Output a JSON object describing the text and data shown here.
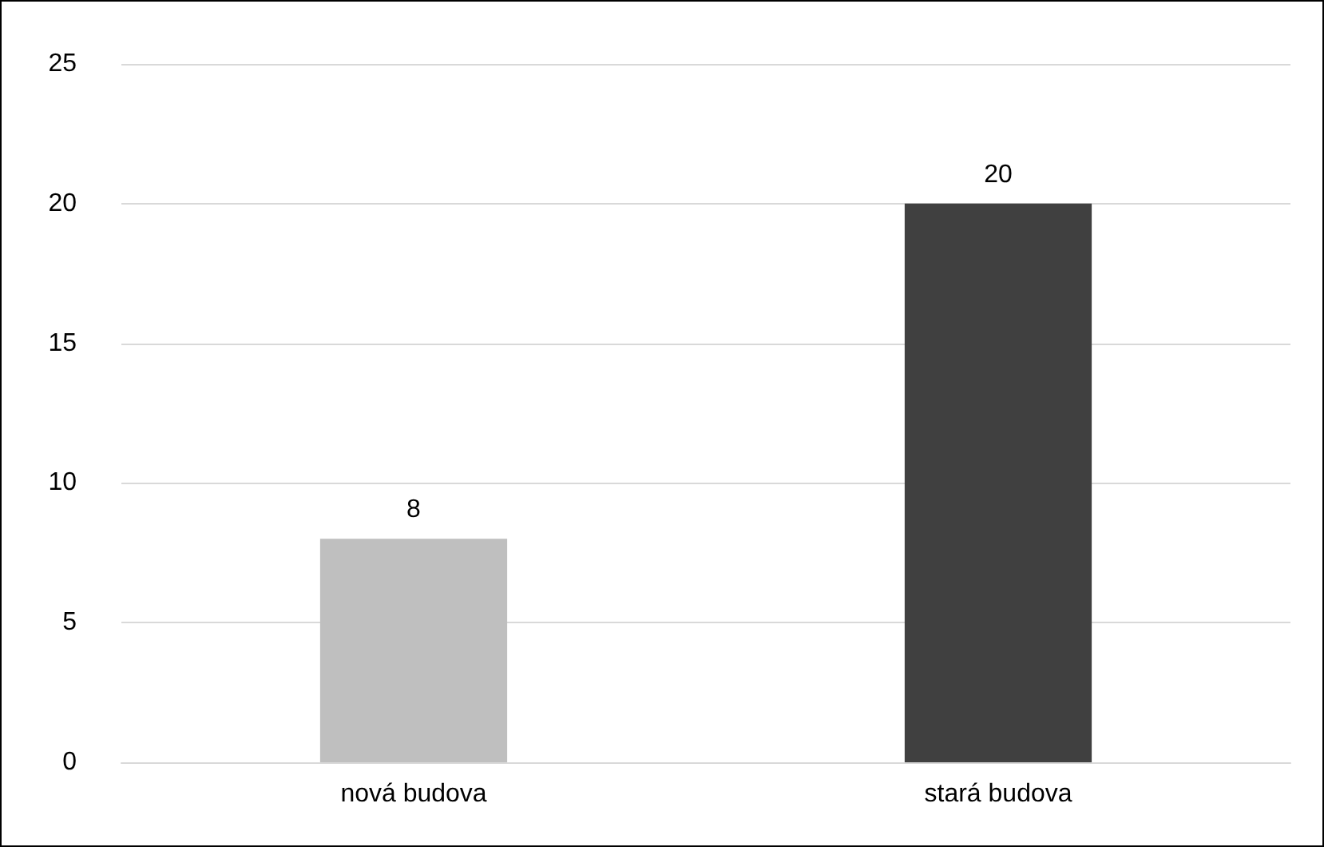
{
  "chart_data": {
    "type": "bar",
    "categories": [
      "nová budova",
      "stará budova"
    ],
    "values": [
      8,
      20
    ],
    "colors": [
      "#bfbfbf",
      "#404040"
    ],
    "ylim": [
      0,
      25
    ],
    "yticks": [
      0,
      5,
      10,
      15,
      20,
      25
    ],
    "grid": "y",
    "data_labels": true
  }
}
